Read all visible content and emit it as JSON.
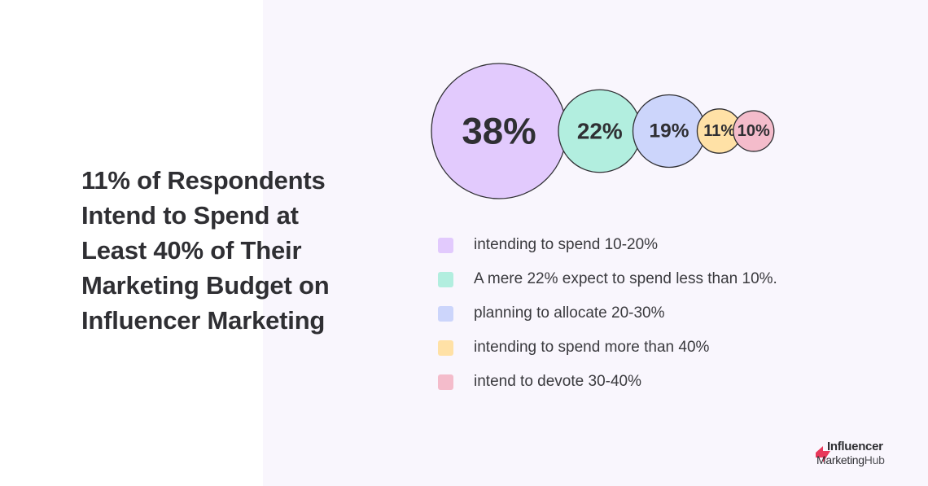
{
  "title": "11% of Respondents Intend to Spend at Least 40% of Their Marketing Budget on Influencer Marketing",
  "chart_data": {
    "type": "bubble",
    "series": [
      {
        "label": "38%",
        "value": 38,
        "legend": "intending to spend 10-20%",
        "color": "#e2cafd"
      },
      {
        "label": "22%",
        "value": 22,
        "legend": "A mere 22% expect to spend less than 10%.",
        "color": "#b2eedf"
      },
      {
        "label": "19%",
        "value": 19,
        "legend": "planning to allocate 20-30%",
        "color": "#ccd5fb"
      },
      {
        "label": "11%",
        "value": 11,
        "legend": "intending to spend more than 40%",
        "color": "#ffe1a6"
      },
      {
        "label": "10%",
        "value": 10,
        "legend": "intend to devote 30-40%",
        "color": "#f4bccb"
      }
    ],
    "legend_position": "below"
  },
  "logo": {
    "line1": "Influencer",
    "line2_a": "Marketing",
    "line2_b": "Hub",
    "mark_color": "#e8385a"
  }
}
